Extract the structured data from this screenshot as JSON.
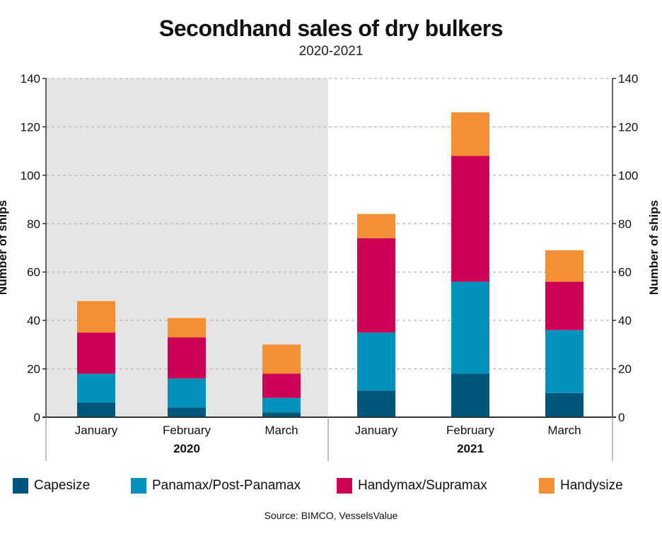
{
  "chart_data": {
    "type": "bar",
    "stacked": true,
    "title": "Secondhand sales of dry bulkers",
    "subtitle": "2020-2021",
    "ylabel": "Number of ships",
    "ylabel_right": "Number of ships",
    "ylim": [
      0,
      140
    ],
    "yticks": [
      0,
      20,
      40,
      60,
      80,
      100,
      120,
      140
    ],
    "grid": true,
    "categories": [
      "January",
      "February",
      "March",
      "January",
      "February",
      "March"
    ],
    "groups": [
      {
        "label": "2020",
        "shaded": true
      },
      {
        "label": "2021",
        "shaded": false
      }
    ],
    "series": [
      {
        "name": "Capesize",
        "color": "#00577b",
        "values": [
          6,
          4,
          2,
          11,
          18,
          10
        ]
      },
      {
        "name": "Panamax/Post-Panamax",
        "color": "#0092bc",
        "values": [
          12,
          12,
          6,
          24,
          38,
          26
        ]
      },
      {
        "name": "Handymax/Supramax",
        "color": "#cd0055",
        "values": [
          17,
          17,
          10,
          39,
          52,
          20
        ]
      },
      {
        "name": "Handysize",
        "color": "#f39033",
        "values": [
          13,
          8,
          12,
          10,
          18,
          13
        ]
      }
    ],
    "legend_position": "bottom",
    "source": "Source: BIMCO, VesselsValue"
  }
}
